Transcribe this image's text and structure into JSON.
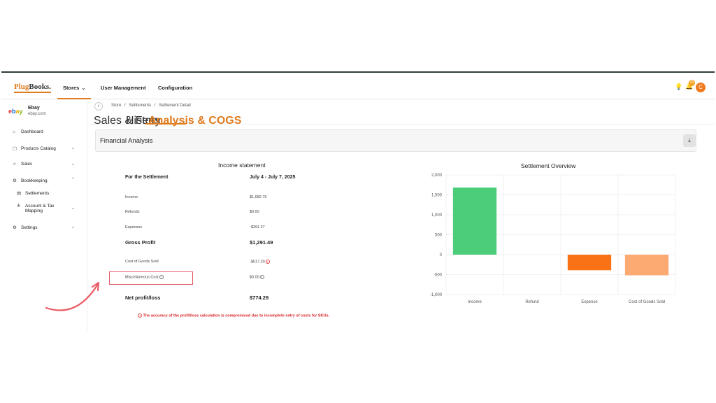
{
  "app": {
    "logo_part1": "Plug",
    "logo_part2": "Books."
  },
  "nav": {
    "stores": "Stores",
    "user_management": "User Management",
    "configuration": "Configuration",
    "notification_count": "20",
    "avatar_initial": "C"
  },
  "store": {
    "name": "Ebay",
    "domain": "ebay.com"
  },
  "sidebar": {
    "items": [
      {
        "label": "Dashboard",
        "icon": "dashboard-icon"
      },
      {
        "label": "Products Catalog",
        "icon": "catalog-icon"
      },
      {
        "label": "Sales",
        "icon": "chart-icon"
      },
      {
        "label": "Bookkeeping",
        "icon": "gear-icon"
      },
      {
        "label": "Settlements",
        "icon": "document-icon"
      },
      {
        "label": "Account & Tax",
        "icon": "tree-icon"
      },
      {
        "label": "Mapping",
        "icon": ""
      },
      {
        "label": "Settings",
        "icon": "gear-icon"
      }
    ]
  },
  "breadcrumb": {
    "items": [
      "Store",
      "Settlements",
      "Settlement Detail"
    ],
    "separator": "/"
  },
  "tabs": [
    "Sales & Fees",
    "History",
    "Analysis & COGS"
  ],
  "panel": {
    "title": "Financial Analysis"
  },
  "income_statement": {
    "title": "Income statement",
    "period_label": "For the Settlement",
    "period_value": "July 4 - July 7, 2025",
    "rows": [
      {
        "label": "Income",
        "value": "$1,682.76"
      },
      {
        "label": "Refunds",
        "value": "$0.00"
      },
      {
        "label": "Expenses",
        "value": "-$391.27"
      },
      {
        "label": "Gross Profit",
        "value": "$1,291.49"
      },
      {
        "label": "Cost of Goods Sold",
        "value": "-$517.20"
      },
      {
        "label": "Miscellaneous Cost",
        "value": "$0.00"
      },
      {
        "label": "Net profit/loss",
        "value": "$774.29"
      }
    ],
    "warning": "The accuracy of the profit/loss calculation is compromised due to incomplete entry of costs for SKUs."
  },
  "colors": {
    "accent": "#e07b1f",
    "income": "#4ccd7a",
    "expense": "#f97316",
    "cogs": "#fdaa72",
    "warning": "#d9252b"
  },
  "chart_data": {
    "type": "bar",
    "title": "Settlement Overview",
    "categories": [
      "Income",
      "Refund",
      "Expense",
      "Cost of Goods Sold"
    ],
    "values": [
      1682.76,
      0,
      -391.27,
      -517.2
    ],
    "ylim": [
      -1000,
      2000
    ],
    "yticks": [
      "2,000",
      "1,500",
      "1,000",
      "500",
      "0",
      "-500",
      "-1,000"
    ],
    "ytick_values": [
      2000,
      1500,
      1000,
      500,
      0,
      -500,
      -1000
    ],
    "grid": true,
    "legend": "none"
  }
}
